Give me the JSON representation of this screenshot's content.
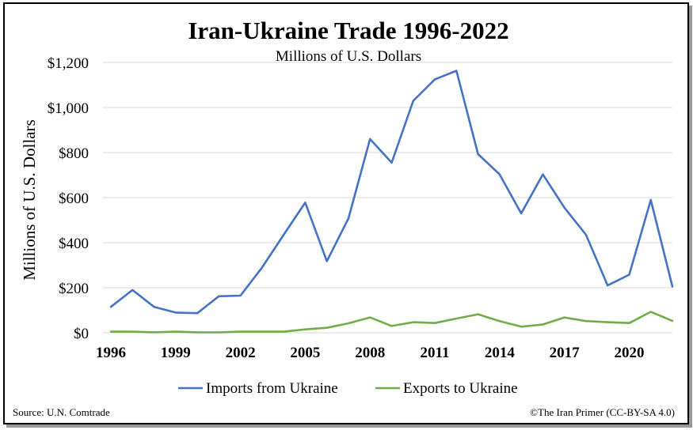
{
  "chart_data": {
    "type": "line",
    "title": "Iran-Ukraine Trade 1996-2022",
    "subtitle": "Millions of U.S. Dollars",
    "ylabel": "Millions of U.S. Dollars",
    "xlabel": "",
    "x": [
      1996,
      1997,
      1998,
      1999,
      2000,
      2001,
      2002,
      2003,
      2004,
      2005,
      2006,
      2007,
      2008,
      2009,
      2010,
      2011,
      2012,
      2013,
      2014,
      2015,
      2016,
      2017,
      2018,
      2019,
      2020,
      2021,
      2022
    ],
    "x_ticks": [
      "1996",
      "1999",
      "2002",
      "2005",
      "2008",
      "2011",
      "2014",
      "2017",
      "2020"
    ],
    "y_ticks": [
      "$0",
      "$200",
      "$400",
      "$600",
      "$800",
      "$1,000",
      "$1,200"
    ],
    "y_tick_values": [
      0,
      200,
      400,
      600,
      800,
      1000,
      1200
    ],
    "ylim": [
      0,
      1200
    ],
    "grid": "horizontal",
    "legend_position": "bottom",
    "series": [
      {
        "name": "Imports from Ukraine",
        "color": "#4472C4",
        "values": [
          115,
          190,
          115,
          90,
          87,
          162,
          165,
          290,
          435,
          578,
          318,
          508,
          860,
          755,
          1030,
          1125,
          1163,
          793,
          703,
          530,
          703,
          555,
          435,
          210,
          258,
          590,
          205
        ]
      },
      {
        "name": "Exports to Ukraine",
        "color": "#70AD47",
        "values": [
          5,
          5,
          2,
          5,
          2,
          2,
          5,
          5,
          5,
          15,
          22,
          42,
          68,
          30,
          47,
          43,
          63,
          82,
          52,
          27,
          37,
          68,
          52,
          47,
          43,
          93,
          53
        ]
      }
    ]
  },
  "footer": {
    "source": "Source: U.N. Comtrade",
    "credit": "©The Iran Primer (CC-BY-SA 4.0)"
  }
}
